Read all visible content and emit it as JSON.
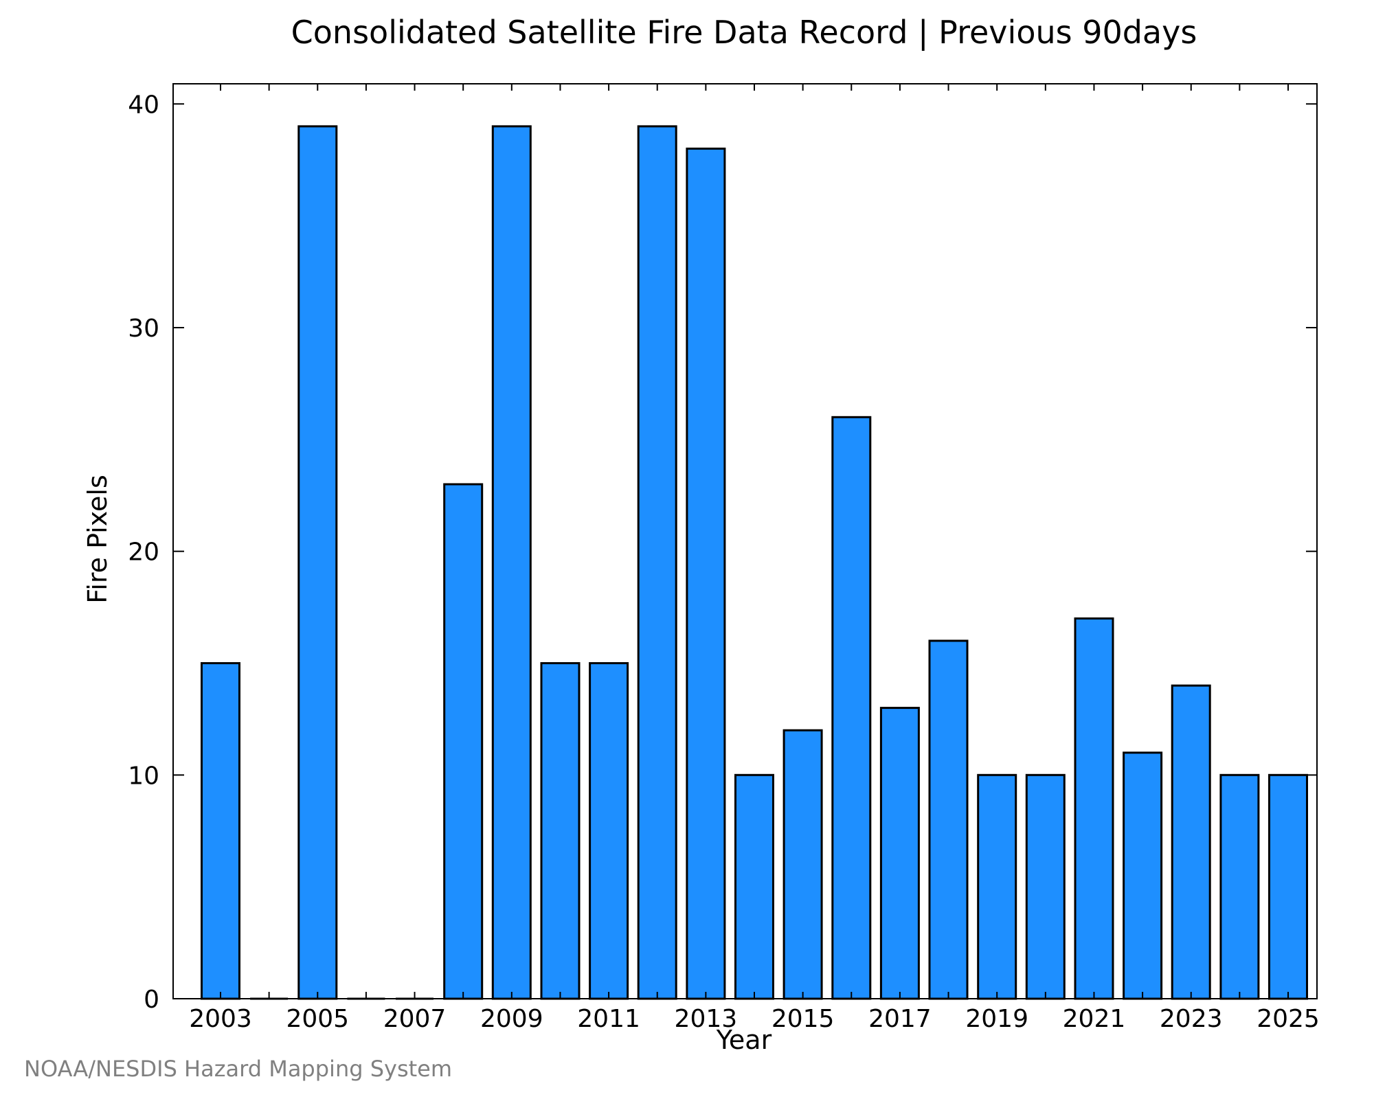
{
  "chart_data": {
    "type": "bar",
    "title": "Consolidated Satellite Fire Data Record | Previous 90days",
    "xlabel": "Year",
    "ylabel": "Fire Pixels",
    "categories": [
      "2003",
      "2004",
      "2005",
      "2006",
      "2007",
      "2008",
      "2009",
      "2010",
      "2011",
      "2012",
      "2013",
      "2014",
      "2015",
      "2016",
      "2017",
      "2018",
      "2019",
      "2020",
      "2021",
      "2022",
      "2023",
      "2024",
      "2025"
    ],
    "values": [
      15,
      0,
      39,
      0,
      0,
      23,
      39,
      15,
      15,
      39,
      38,
      10,
      12,
      26,
      13,
      16,
      10,
      10,
      17,
      11,
      14,
      10,
      10
    ],
    "x_tick_labels": [
      "2003",
      "2005",
      "2007",
      "2009",
      "2011",
      "2013",
      "2015",
      "2017",
      "2019",
      "2021",
      "2023",
      "2025"
    ],
    "y_ticks": [
      0,
      10,
      20,
      30,
      40
    ],
    "ylim": [
      0,
      40.9
    ],
    "grid": false,
    "bar_color": "#1e8fff",
    "edge_color": "#000000"
  },
  "credit": "NOAA/NESDIS Hazard Mapping System"
}
